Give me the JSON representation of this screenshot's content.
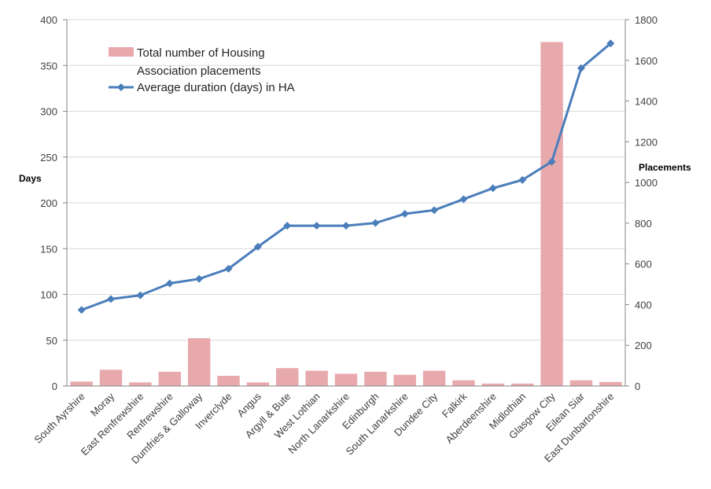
{
  "chart_data": {
    "type": "bar+line",
    "categories": [
      "South Ayrshire",
      "Moray",
      "East Renfrewshire",
      "Renfrewshire",
      "Dumfries & Galloway",
      "Inverclyde",
      "Angus",
      "Argyll & Bute",
      "West Lothian",
      "North Lanarkshire",
      "Edinburgh",
      "South Lanarkshire",
      "Dundee City",
      "Falkirk",
      "Aberdeenshire",
      "Midlothian",
      "Glasgow City",
      "Eilean Siar",
      "East Dunbartonshire"
    ],
    "series": [
      {
        "name": "Total number of Housing Association placements",
        "type": "bar",
        "axis": "right",
        "color": "#e8a9ad",
        "values": [
          22,
          80,
          18,
          70,
          235,
          50,
          18,
          88,
          75,
          60,
          70,
          55,
          75,
          28,
          12,
          12,
          1690,
          28,
          20
        ]
      },
      {
        "name": "Average duration (days) in HA",
        "type": "line",
        "axis": "left",
        "color": "#4a7ebb",
        "values": [
          83,
          95,
          99,
          112,
          117,
          128,
          152,
          175,
          175,
          175,
          178,
          188,
          192,
          204,
          216,
          225,
          245,
          347,
          374
        ]
      }
    ],
    "y_left": {
      "label": "Days",
      "min": 0,
      "max": 400,
      "step": 50,
      "ticks": [
        "0",
        "50",
        "100",
        "150",
        "200",
        "250",
        "300",
        "350",
        "400"
      ]
    },
    "y_right": {
      "label": "Placements",
      "min": 0,
      "max": 1800,
      "step": 200,
      "ticks": [
        "0",
        "200",
        "400",
        "600",
        "800",
        "1000",
        "1200",
        "1400",
        "1600",
        "1800"
      ]
    },
    "legend": {
      "position": "top-left",
      "bar_label_lines": [
        "Total number of Housing",
        "Association placements"
      ],
      "line_label": "Average duration (days) in HA"
    },
    "grid": true
  }
}
